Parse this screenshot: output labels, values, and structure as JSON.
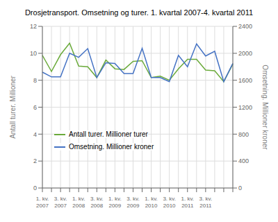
{
  "chart_data": {
    "type": "line",
    "title": "Drosjetransport. Omsetning og turer. 1. kvartal 2007-4. kvartal 2011",
    "ylabel": "Antall turer. Millioner",
    "y2label": "Omsetning. Millioner kroner",
    "categories": [
      "1. kv.\n2007",
      null,
      "3. kv.\n2007",
      null,
      "1. kv.\n2008",
      null,
      "3. kv.\n2008",
      null,
      "1. kv.\n2009",
      null,
      "3. kv.\n2009",
      null,
      "1. kv.\n2010",
      null,
      "3. kv.\n2010",
      null,
      "1. kv.\n2011",
      null,
      "3. kv.\n2011",
      null,
      null,
      null
    ],
    "series": [
      {
        "name": "Antall turer. Millioner turer",
        "color": "#6aaa3a",
        "values": [
          9.85,
          8.65,
          9.9,
          10.75,
          9.05,
          9.0,
          8.2,
          9.5,
          8.85,
          8.8,
          9.4,
          9.45,
          8.2,
          8.3,
          8.0,
          8.85,
          9.55,
          9.55,
          8.75,
          8.7,
          7.9,
          9.2
        ]
      },
      {
        "name": "Omsetning. Millioner kroner",
        "color": "#4472c4",
        "axis": "y2",
        "values": [
          1720,
          1650,
          1650,
          2000,
          1940,
          2070,
          1640,
          1860,
          1850,
          1700,
          1700,
          2075,
          1640,
          1640,
          1580,
          1970,
          1800,
          2140,
          1960,
          2030,
          1580,
          1850
        ]
      }
    ],
    "ylim": [
      0,
      12
    ],
    "yticks": [
      0,
      2,
      4,
      6,
      8,
      10,
      12
    ],
    "y2lim": [
      0,
      2400
    ],
    "y2ticks": [
      0,
      400,
      800,
      1200,
      1600,
      2000,
      2400
    ],
    "grid": true
  }
}
